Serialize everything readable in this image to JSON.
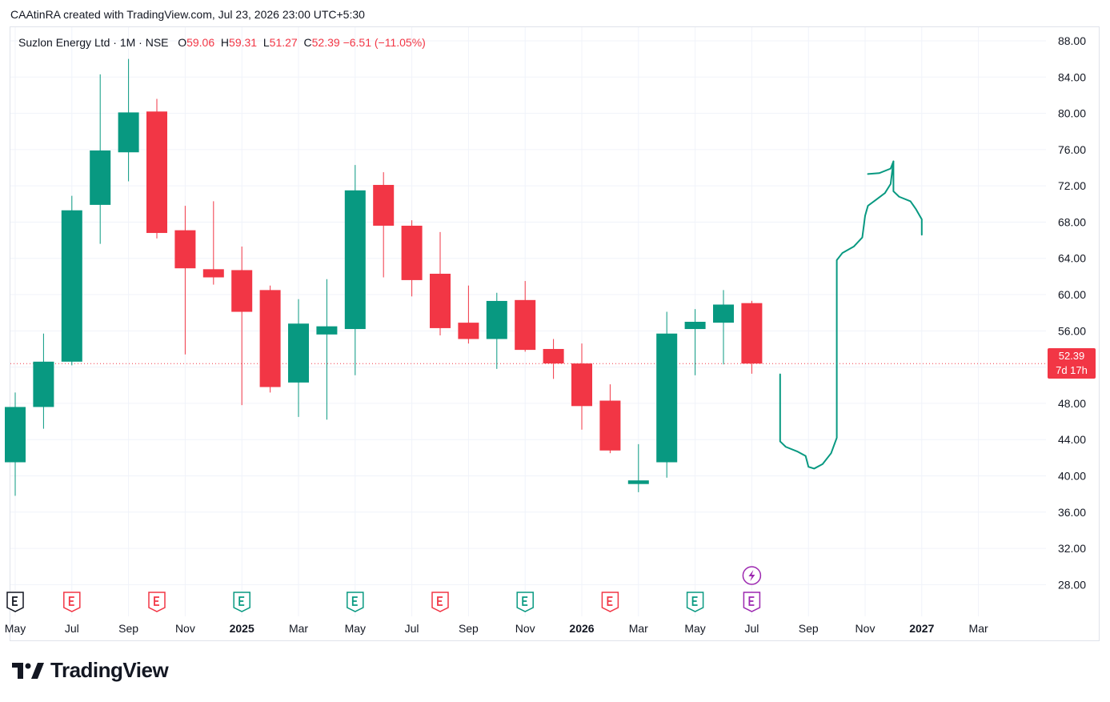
{
  "header": {
    "attribution": "CAAtinRA created with TradingView.com, Jul 23, 2026 23:00 UTC+5:30"
  },
  "legend": {
    "symbol": "Suzlon Energy Ltd · 1M · NSE",
    "o_label": "O",
    "o_value": "59.06",
    "h_label": "H",
    "h_value": "59.31",
    "l_label": "L",
    "l_value": "51.27",
    "c_label": "C",
    "c_value": "52.39",
    "change": "−6.51 (−11.05%)"
  },
  "price_badge": {
    "price": "52.39",
    "countdown": "7d 17h"
  },
  "footer": {
    "brand": "TradingView"
  },
  "colors": {
    "up": "#089981",
    "down": "#f23645",
    "grid": "#f0f3fa",
    "axis_text": "#131722",
    "drawing": "#089981",
    "earnings_up": "#089981",
    "earnings_down": "#f23645",
    "earnings_upcoming": "#9c27b0"
  },
  "chart_data": {
    "type": "candlestick",
    "title": "Suzlon Energy Ltd · 1M · NSE",
    "ylim": [
      24.5,
      89.5
    ],
    "y_ticks": [
      "88.00",
      "84.00",
      "80.00",
      "76.00",
      "72.00",
      "68.00",
      "64.00",
      "60.00",
      "56.00",
      "52.00",
      "48.00",
      "44.00",
      "40.00",
      "36.00",
      "32.00",
      "28.00"
    ],
    "x_ticks": [
      {
        "label": "May",
        "slot": 0,
        "bold": false
      },
      {
        "label": "Jul",
        "slot": 2,
        "bold": false
      },
      {
        "label": "Sep",
        "slot": 4,
        "bold": false
      },
      {
        "label": "Nov",
        "slot": 6,
        "bold": false
      },
      {
        "label": "2025",
        "slot": 8,
        "bold": true
      },
      {
        "label": "Mar",
        "slot": 10,
        "bold": false
      },
      {
        "label": "May",
        "slot": 12,
        "bold": false
      },
      {
        "label": "Jul",
        "slot": 14,
        "bold": false
      },
      {
        "label": "Sep",
        "slot": 16,
        "bold": false
      },
      {
        "label": "Nov",
        "slot": 18,
        "bold": false
      },
      {
        "label": "2026",
        "slot": 20,
        "bold": true
      },
      {
        "label": "Mar",
        "slot": 22,
        "bold": false
      },
      {
        "label": "May",
        "slot": 24,
        "bold": false
      },
      {
        "label": "Jul",
        "slot": 26,
        "bold": false
      },
      {
        "label": "Sep",
        "slot": 28,
        "bold": false
      },
      {
        "label": "Nov",
        "slot": 30,
        "bold": false
      },
      {
        "label": "2027",
        "slot": 32,
        "bold": true
      },
      {
        "label": "Mar",
        "slot": 34,
        "bold": false
      }
    ],
    "candles": [
      {
        "month": "2024-05",
        "o": 41.5,
        "h": 49.2,
        "l": 37.8,
        "c": 47.6
      },
      {
        "month": "2024-06",
        "o": 47.6,
        "h": 55.7,
        "l": 45.2,
        "c": 52.6
      },
      {
        "month": "2024-07",
        "o": 52.6,
        "h": 70.9,
        "l": 52.2,
        "c": 69.3
      },
      {
        "month": "2024-08",
        "o": 69.9,
        "h": 84.3,
        "l": 65.6,
        "c": 75.9
      },
      {
        "month": "2024-09",
        "o": 75.7,
        "h": 86.0,
        "l": 72.5,
        "c": 80.1
      },
      {
        "month": "2024-10",
        "o": 80.2,
        "h": 81.6,
        "l": 66.2,
        "c": 66.8
      },
      {
        "month": "2024-11",
        "o": 67.1,
        "h": 69.8,
        "l": 53.4,
        "c": 62.9
      },
      {
        "month": "2024-12",
        "o": 62.8,
        "h": 70.3,
        "l": 61.1,
        "c": 61.9
      },
      {
        "month": "2025-01",
        "o": 62.7,
        "h": 65.3,
        "l": 47.8,
        "c": 58.1
      },
      {
        "month": "2025-02",
        "o": 60.5,
        "h": 61.0,
        "l": 49.2,
        "c": 49.8
      },
      {
        "month": "2025-03",
        "o": 50.3,
        "h": 59.5,
        "l": 46.5,
        "c": 56.8
      },
      {
        "month": "2025-04",
        "o": 55.6,
        "h": 61.7,
        "l": 46.2,
        "c": 56.5
      },
      {
        "month": "2025-05",
        "o": 56.2,
        "h": 74.3,
        "l": 51.1,
        "c": 71.5
      },
      {
        "month": "2025-06",
        "o": 72.1,
        "h": 73.5,
        "l": 61.9,
        "c": 67.6
      },
      {
        "month": "2025-07",
        "o": 67.6,
        "h": 68.2,
        "l": 59.8,
        "c": 61.6
      },
      {
        "month": "2025-08",
        "o": 62.3,
        "h": 66.9,
        "l": 55.5,
        "c": 56.3
      },
      {
        "month": "2025-09",
        "o": 56.9,
        "h": 61.0,
        "l": 54.6,
        "c": 55.1
      },
      {
        "month": "2025-10",
        "o": 55.1,
        "h": 60.2,
        "l": 51.8,
        "c": 59.3
      },
      {
        "month": "2025-11",
        "o": 59.4,
        "h": 61.5,
        "l": 53.7,
        "c": 53.9
      },
      {
        "month": "2025-12",
        "o": 54.0,
        "h": 55.1,
        "l": 50.7,
        "c": 52.4
      },
      {
        "month": "2026-01",
        "o": 52.4,
        "h": 54.6,
        "l": 45.1,
        "c": 47.7
      },
      {
        "month": "2026-02",
        "o": 48.3,
        "h": 50.1,
        "l": 42.5,
        "c": 42.8
      },
      {
        "month": "2026-03",
        "o": 39.1,
        "h": 43.5,
        "l": 38.2,
        "c": 39.5
      },
      {
        "month": "2026-04",
        "o": 41.5,
        "h": 58.1,
        "l": 39.8,
        "c": 55.7
      },
      {
        "month": "2026-05",
        "o": 56.2,
        "h": 58.4,
        "l": 51.1,
        "c": 57.0
      },
      {
        "month": "2026-06",
        "o": 56.9,
        "h": 60.5,
        "l": 52.3,
        "c": 58.9
      },
      {
        "month": "2026-07",
        "o": 59.06,
        "h": 59.31,
        "l": 51.27,
        "c": 52.39
      }
    ],
    "last_price": 52.39,
    "earnings_markers": [
      {
        "slot": 0,
        "kind": "neutral"
      },
      {
        "slot": 2,
        "kind": "down"
      },
      {
        "slot": 5,
        "kind": "down"
      },
      {
        "slot": 8,
        "kind": "up"
      },
      {
        "slot": 12,
        "kind": "up"
      },
      {
        "slot": 15,
        "kind": "down"
      },
      {
        "slot": 18,
        "kind": "up"
      },
      {
        "slot": 21,
        "kind": "down"
      },
      {
        "slot": 24,
        "kind": "up"
      },
      {
        "slot": 26,
        "kind": "upcoming"
      }
    ],
    "dividend_marker": {
      "slot": 26
    },
    "drawing_path": [
      [
        27.0,
        51.2
      ],
      [
        27.0,
        43.8
      ],
      [
        27.2,
        43.2
      ],
      [
        27.6,
        42.7
      ],
      [
        27.9,
        42.2
      ],
      [
        28.0,
        41.0
      ],
      [
        28.2,
        40.8
      ],
      [
        28.5,
        41.3
      ],
      [
        28.8,
        42.5
      ],
      [
        29.0,
        44.2
      ],
      [
        29.0,
        63.8
      ],
      [
        29.2,
        64.6
      ],
      [
        29.6,
        65.3
      ],
      [
        29.9,
        66.3
      ],
      [
        30.0,
        68.7
      ],
      [
        30.1,
        69.8
      ],
      [
        30.4,
        70.5
      ],
      [
        30.7,
        71.2
      ],
      [
        30.9,
        72.2
      ],
      [
        31.0,
        74.7
      ],
      [
        31.0,
        71.4
      ],
      [
        31.2,
        70.8
      ],
      [
        31.6,
        70.3
      ],
      [
        31.8,
        69.4
      ],
      [
        32.0,
        68.3
      ],
      [
        32.0,
        66.6
      ]
    ],
    "drawing_tail": [
      [
        30.1,
        73.3
      ],
      [
        30.5,
        73.4
      ],
      [
        30.9,
        73.9
      ],
      [
        31.0,
        74.7
      ]
    ]
  }
}
